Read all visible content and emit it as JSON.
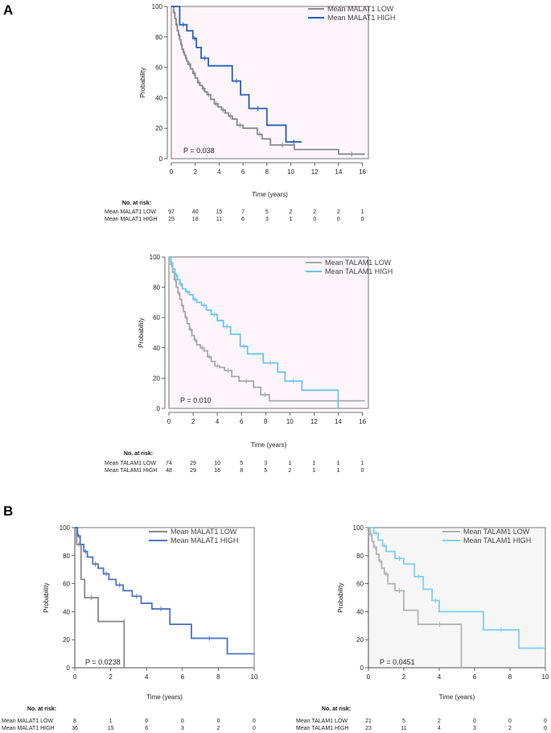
{
  "panel_labels": {
    "a": "A",
    "b": "B"
  },
  "chart_data": [
    {
      "id": "a1",
      "type": "line",
      "subtype": "kaplan-meier",
      "title": "",
      "xlabel": "Time (years)",
      "ylabel": "Probability",
      "xlim": [
        0,
        16.5
      ],
      "ylim": [
        0,
        100
      ],
      "xticks": [
        0,
        2,
        4,
        6,
        8,
        10,
        12,
        14,
        16
      ],
      "yticks": [
        0,
        20,
        40,
        60,
        80,
        100
      ],
      "pvalue": "P = 0.038",
      "legend_position": "top-right",
      "risk_title": "No. at risk:",
      "series": [
        {
          "name": "Mean MALAT1 LOW",
          "color": "#8a8a8a",
          "x": [
            0,
            0.2,
            0.3,
            0.4,
            0.5,
            0.6,
            0.7,
            0.8,
            0.9,
            1.0,
            1.1,
            1.2,
            1.3,
            1.4,
            1.6,
            1.8,
            2.0,
            2.2,
            2.4,
            2.6,
            2.8,
            3.0,
            3.3,
            3.6,
            3.9,
            4.2,
            4.5,
            4.8,
            5.1,
            5.5,
            6.0,
            7.2,
            7.6,
            8.3,
            10.3,
            14.0,
            16.2
          ],
          "y": [
            100,
            96,
            92,
            88,
            84,
            81,
            78,
            75,
            72,
            70,
            68,
            66,
            64,
            62,
            59,
            56,
            53,
            50,
            48,
            46,
            44,
            42,
            39,
            36,
            34,
            32,
            30,
            28,
            26,
            22,
            20,
            16,
            13,
            9,
            6,
            3,
            3
          ],
          "risk": [
            "97",
            "40",
            "15",
            "7",
            "5",
            "2",
            "2",
            "2",
            "1"
          ]
        },
        {
          "name": "Mean MALAT1 HIGH",
          "color": "#2460b8",
          "x": [
            0,
            0.7,
            1.3,
            1.8,
            2.1,
            2.5,
            3.1,
            5.1,
            5.8,
            6.5,
            8.0,
            9.6,
            10.9
          ],
          "y": [
            100,
            88,
            84,
            79,
            73,
            66,
            61,
            51,
            42,
            33,
            22,
            11,
            11
          ],
          "risk": [
            "25",
            "18",
            "11",
            "6",
            "3",
            "1",
            "0",
            "0",
            "0"
          ]
        }
      ]
    },
    {
      "id": "a2",
      "type": "line",
      "subtype": "kaplan-meier",
      "title": "",
      "xlabel": "Time (years)",
      "ylabel": "Probability",
      "xlim": [
        0,
        16.5
      ],
      "ylim": [
        0,
        100
      ],
      "xticks": [
        0,
        2,
        4,
        6,
        8,
        10,
        12,
        14,
        16
      ],
      "yticks": [
        0,
        20,
        40,
        60,
        80,
        100
      ],
      "pvalue": "P = 0.010",
      "legend_position": "top-right",
      "risk_title": "No. at risk:",
      "series": [
        {
          "name": "Mean TALAM1 LOW",
          "color": "#a9a9a9",
          "x": [
            0,
            0.15,
            0.3,
            0.45,
            0.6,
            0.75,
            0.9,
            1.05,
            1.2,
            1.35,
            1.5,
            1.7,
            1.9,
            2.1,
            2.3,
            2.6,
            2.9,
            3.2,
            3.5,
            3.8,
            4.2,
            4.6,
            5.2,
            5.8,
            7.0,
            7.6,
            8.3,
            16.2
          ],
          "y": [
            100,
            95,
            90,
            85,
            80,
            76,
            72,
            68,
            64,
            60,
            56,
            52,
            48,
            45,
            42,
            40,
            38,
            34,
            31,
            28,
            27,
            25,
            21,
            18,
            14,
            9,
            5,
            5
          ],
          "risk": [
            "74",
            "29",
            "10",
            "5",
            "3",
            "1",
            "1",
            "1",
            "1"
          ]
        },
        {
          "name": "Mean TALAM1 HIGH",
          "color": "#6cc5ee",
          "x": [
            0,
            0.15,
            0.3,
            0.5,
            0.7,
            0.9,
            1.1,
            1.4,
            1.7,
            2.0,
            2.3,
            2.7,
            3.1,
            3.5,
            4.0,
            4.5,
            5.1,
            5.9,
            6.5,
            7.8,
            9.0,
            9.6,
            11.0,
            14.0
          ],
          "y": [
            100,
            96,
            92,
            88,
            85,
            82,
            79,
            77,
            75,
            72,
            70,
            68,
            65,
            62,
            58,
            54,
            49,
            41,
            36,
            30,
            24,
            18,
            12,
            0
          ],
          "risk": [
            "48",
            "29",
            "16",
            "8",
            "5",
            "2",
            "1",
            "1",
            "0"
          ]
        }
      ]
    },
    {
      "id": "b1",
      "type": "line",
      "subtype": "kaplan-meier",
      "title": "",
      "xlabel": "Time (years)",
      "ylabel": "Probability",
      "xlim": [
        0,
        10
      ],
      "ylim": [
        0,
        100
      ],
      "xticks": [
        0,
        2,
        4,
        6,
        8,
        10
      ],
      "yticks": [
        0,
        20,
        40,
        60,
        80,
        100
      ],
      "pvalue": "P = 0.0238",
      "legend_position": "top-right",
      "risk_title": "No. at risk:",
      "series": [
        {
          "name": "Mean MALAT1 LOW",
          "color": "#8a8a8a",
          "x": [
            0,
            0.1,
            0.35,
            0.55,
            1.3,
            2.75,
            2.75
          ],
          "y": [
            100,
            88,
            63,
            50,
            33,
            33,
            0
          ],
          "risk": [
            "8",
            "1",
            "0",
            "0",
            "0",
            "0"
          ]
        },
        {
          "name": "Mean MALAT1 HIGH",
          "color": "#4f75c4",
          "x": [
            0,
            0.15,
            0.3,
            0.5,
            0.7,
            1.0,
            1.3,
            1.6,
            1.9,
            2.3,
            2.7,
            3.2,
            3.7,
            4.3,
            5.3,
            6.5,
            8.5,
            10
          ],
          "y": [
            100,
            94,
            88,
            83,
            79,
            74,
            71,
            67,
            63,
            59,
            55,
            51,
            46,
            42,
            31,
            21,
            10,
            10
          ],
          "risk": [
            "36",
            "15",
            "6",
            "3",
            "2",
            "0"
          ]
        }
      ]
    },
    {
      "id": "b2",
      "type": "line",
      "subtype": "kaplan-meier",
      "title": "",
      "xlabel": "Time (years)",
      "ylabel": "Probability",
      "xlim": [
        0,
        10
      ],
      "ylim": [
        0,
        100
      ],
      "xticks": [
        0,
        2,
        4,
        6,
        8,
        10
      ],
      "yticks": [
        0,
        20,
        40,
        60,
        80,
        100
      ],
      "pvalue": "P = 0.0451",
      "legend_position": "top-right",
      "risk_title": "No. at risk:",
      "series": [
        {
          "name": "Mean TALAM1 LOW",
          "color": "#b4b4b4",
          "x": [
            0,
            0.1,
            0.2,
            0.3,
            0.45,
            0.6,
            0.75,
            0.9,
            1.1,
            1.5,
            2.0,
            2.8,
            5.25,
            5.25
          ],
          "y": [
            100,
            95,
            90,
            86,
            81,
            76,
            71,
            67,
            60,
            55,
            41,
            31,
            31,
            0
          ],
          "risk": [
            "21",
            "5",
            "2",
            "0",
            "0",
            "0"
          ]
        },
        {
          "name": "Mean TALAM1 HIGH",
          "color": "#7ecfee",
          "x": [
            0,
            0.3,
            0.55,
            0.8,
            1.0,
            1.5,
            2.0,
            2.6,
            3.1,
            3.6,
            4.0,
            6.5,
            8.5,
            10
          ],
          "y": [
            100,
            96,
            91,
            87,
            83,
            78,
            74,
            65,
            56,
            48,
            40,
            27,
            14,
            14
          ],
          "risk": [
            "23",
            "11",
            "4",
            "3",
            "2",
            "0"
          ]
        }
      ]
    }
  ]
}
